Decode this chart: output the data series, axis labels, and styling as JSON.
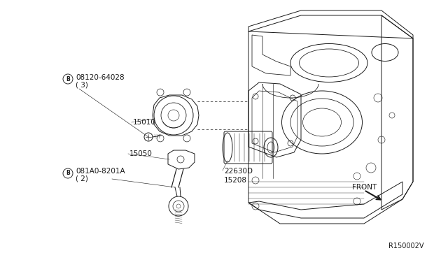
{
  "background_color": "#ffffff",
  "line_color": "#1a1a1a",
  "fig_width": 6.4,
  "fig_height": 3.72,
  "dpi": 100,
  "labels": {
    "bolt_top": "08120-64028",
    "bolt_top_qty": "( 3)",
    "part_15010": "15010",
    "part_15050": "15050",
    "bolt_bottom": "081A0-8201A",
    "bolt_bottom_qty": "( 2)",
    "part_22630D": "22630D",
    "part_15208": "15208",
    "front": "FRONT",
    "ref": "R150002V"
  },
  "font_size": 7.5,
  "ref_font_size": 7
}
